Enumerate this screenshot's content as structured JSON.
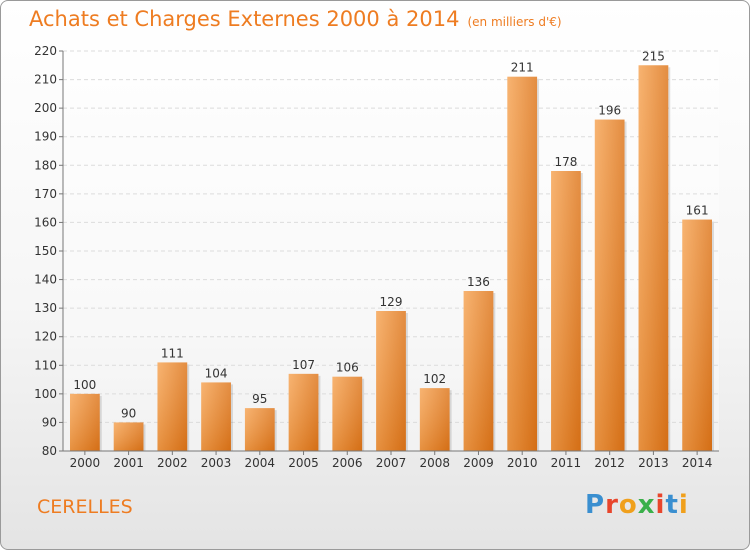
{
  "header": {
    "title": "Achats et Charges Externes 2000 à 2014",
    "subtitle": "(en milliers d'€)"
  },
  "footer": {
    "commune": "CERELLES",
    "logo_letters": [
      "P",
      "r",
      "o",
      "x",
      "i",
      "t",
      "i"
    ],
    "logo_colors": [
      "#3a8fd0",
      "#e8452c",
      "#f0a01c",
      "#3ab04a",
      "#e8452c",
      "#3a8fd0",
      "#f0a01c"
    ]
  },
  "chart_data": {
    "type": "bar",
    "title": "Achats et Charges Externes 2000 à 2014",
    "xlabel": "",
    "ylabel": "",
    "categories": [
      "2000",
      "2001",
      "2002",
      "2003",
      "2004",
      "2005",
      "2006",
      "2007",
      "2008",
      "2009",
      "2010",
      "2011",
      "2012",
      "2013",
      "2014"
    ],
    "values": [
      100,
      90,
      111,
      104,
      95,
      107,
      106,
      129,
      102,
      136,
      211,
      178,
      196,
      215,
      161
    ],
    "ylim": [
      80,
      220
    ],
    "yticks": [
      80,
      90,
      100,
      110,
      120,
      130,
      140,
      150,
      160,
      170,
      180,
      190,
      200,
      210,
      220
    ],
    "grid": true,
    "bar_color": "#ee8a2e"
  }
}
